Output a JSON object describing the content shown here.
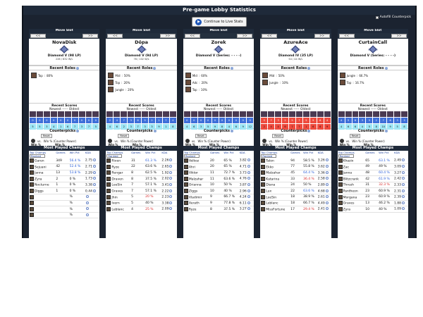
{
  "header": {
    "title": "Pre-game Lobby Statistics",
    "auto_counterpick": "Autofill Counterpick",
    "continue_label": "Continue to Live Stats"
  },
  "labels": {
    "move_slot": "Move Slot",
    "move_left": "<<",
    "move_right": ">>",
    "recent_roles": "Recent Roles",
    "recent_scores": "Recent Scores",
    "newest_oldest": "Newest ----- Oldest",
    "counterpicks": "Counterpicks",
    "reset": "Reset",
    "vs": "vs.",
    "win_pct_cp": "Win % (Counter Power)",
    "win_pct": "Win %",
    "most_played": "Most Played Champs",
    "top_champs": "Top Champs",
    "games": "Games",
    "win_pct_col": "Win Pct",
    "kda": "KDA",
    "filter": "Ranked"
  },
  "players": [
    {
      "name": "NovaDisk",
      "rank": "Diamond V (98 LP)",
      "lp": "226 / 632 W/L",
      "roles": [
        {
          "name": "Top",
          "pct": "80%"
        }
      ],
      "champs": [
        {
          "name": "Garen",
          "games": "349",
          "wr": "56.4 %",
          "kda": "2.75",
          "wc": "blue"
        },
        {
          "name": "Sejuani",
          "games": "42",
          "wr": "52.4 %",
          "kda": "2.71",
          "wc": "blue"
        },
        {
          "name": "Janna",
          "games": "13",
          "wr": "53.8 %",
          "kda": "2.29",
          "wc": "blue"
        },
        {
          "name": "Zyra",
          "games": "2",
          "wr": "0 %",
          "kda": "1.73",
          "wc": ""
        },
        {
          "name": "Nocturne",
          "games": "1",
          "wr": "0 %",
          "kda": "3.38",
          "wc": ""
        },
        {
          "name": "Diggs",
          "games": "1",
          "wr": "0 %",
          "kda": "0.44",
          "wc": ""
        },
        {
          "name": "",
          "games": "",
          "wr": "%",
          "kda": "",
          "wc": ""
        },
        {
          "name": "",
          "games": "",
          "wr": "%",
          "kda": "",
          "wc": ""
        },
        {
          "name": "",
          "games": "",
          "wr": "%",
          "kda": "",
          "wc": ""
        },
        {
          "name": "",
          "games": "",
          "wr": "%",
          "kda": "",
          "wc": ""
        }
      ]
    },
    {
      "name": "Dôpa",
      "rank": "Diamond V (94 LP)",
      "lp": "78 / 102 W/L",
      "roles": [
        {
          "name": "Mid",
          "pct": "50%"
        },
        {
          "name": "Top",
          "pct": "20%"
        },
        {
          "name": "Jungle",
          "pct": "20%"
        }
      ],
      "champs": [
        {
          "name": "Riven",
          "games": "31",
          "wr": "61.3 %",
          "kda": "2.26",
          "wc": "blue"
        },
        {
          "name": "Ryze",
          "games": "22",
          "wr": "63.6 %",
          "kda": "2.65",
          "wc": ""
        },
        {
          "name": "Rengar",
          "games": "8",
          "wr": "62.5 %",
          "kda": "1.92",
          "wc": ""
        },
        {
          "name": "Draven",
          "games": "8",
          "wr": "37.5 %",
          "kda": "2.02",
          "wc": ""
        },
        {
          "name": "LeeSin",
          "games": "7",
          "wr": "57.1 %",
          "kda": "3.41",
          "wc": ""
        },
        {
          "name": "Graves",
          "games": "7",
          "wr": "57.1 %",
          "kda": "2.22",
          "wc": ""
        },
        {
          "name": "Jhin",
          "games": "5",
          "wr": "20 %",
          "kda": "2.23",
          "wc": "red"
        },
        {
          "name": "Ivern",
          "games": "5",
          "wr": "40 %",
          "kda": "3.38",
          "wc": ""
        },
        {
          "name": "Leblanc",
          "games": "4",
          "wr": "25 %",
          "kda": "2.09",
          "wc": "red"
        }
      ]
    },
    {
      "name": "Zorek",
      "rank": "Diamond V (Series: - - - -)",
      "lp": "",
      "roles": [
        {
          "name": "Mid",
          "pct": "60%"
        },
        {
          "name": "Adc",
          "pct": "20%"
        },
        {
          "name": "Top",
          "pct": "10%"
        }
      ],
      "champs": [
        {
          "name": "Velkoz",
          "games": "20",
          "wr": "65 %",
          "kda": "3.82",
          "wc": ""
        },
        {
          "name": "Ahri",
          "games": "20",
          "wr": "65 %",
          "kda": "4.71",
          "wc": ""
        },
        {
          "name": "Viktor",
          "games": "11",
          "wr": "72.7 %",
          "kda": "3.73",
          "wc": ""
        },
        {
          "name": "Malzahar",
          "games": "11",
          "wr": "63.6 %",
          "kda": "4.76",
          "wc": ""
        },
        {
          "name": "Orianna",
          "games": "10",
          "wr": "50 %",
          "kda": "3.87",
          "wc": ""
        },
        {
          "name": "Ziggs",
          "games": "10",
          "wr": "40 %",
          "kda": "2.96",
          "wc": ""
        },
        {
          "name": "Vladimir",
          "games": "9",
          "wr": "66.7 %",
          "kda": "4.24",
          "wc": ""
        },
        {
          "name": "Xerath",
          "games": "9",
          "wr": "77.8 %",
          "kda": "6.11",
          "wc": ""
        },
        {
          "name": "Ryze",
          "games": "8",
          "wr": "37.5 %",
          "kda": "3.27",
          "wc": ""
        }
      ]
    },
    {
      "name": "AzureAce",
      "rank": "Diamond IV (35 LP)",
      "lp": "54 / 44 W/L",
      "roles": [
        {
          "name": "Mid",
          "pct": "50%"
        },
        {
          "name": "Jungle",
          "pct": "10%"
        }
      ],
      "champs": [
        {
          "name": "Talon",
          "games": "94",
          "wr": "58.5 %",
          "kda": "3.26",
          "wc": ""
        },
        {
          "name": "Ekko",
          "games": "77",
          "wr": "55.8 %",
          "kda": "3.62",
          "wc": ""
        },
        {
          "name": "Malzahar",
          "games": "45",
          "wr": "64.4 %",
          "kda": "3.36",
          "wc": "blue"
        },
        {
          "name": "Katarina",
          "games": "33",
          "wr": "36.4 %",
          "kda": "2.58",
          "wc": "red"
        },
        {
          "name": "Diana",
          "games": "24",
          "wr": "50 %",
          "kda": "2.89",
          "wc": ""
        },
        {
          "name": "Lux",
          "games": "22",
          "wr": "63.6 %",
          "kda": "4.68",
          "wc": "blue"
        },
        {
          "name": "LeeSin",
          "games": "18",
          "wr": "38.9 %",
          "kda": "2.61",
          "wc": ""
        },
        {
          "name": "Leblanc",
          "games": "18",
          "wr": "66.7 %",
          "kda": "4.49",
          "wc": ""
        },
        {
          "name": "MissFortune",
          "games": "17",
          "wr": "29.4 %",
          "kda": "2.41",
          "wc": "red"
        }
      ]
    },
    {
      "name": "CurtainCall",
      "rank": "Diamond V (Series: - - - -)",
      "lp": "",
      "roles": [
        {
          "name": "Jungle",
          "pct": "66.7%"
        },
        {
          "name": "Top",
          "pct": "16.7%"
        }
      ],
      "champs": [
        {
          "name": "Khazix",
          "games": "65",
          "wr": "63.1 %",
          "kda": "2.49",
          "wc": "blue"
        },
        {
          "name": "Zac",
          "games": "49",
          "wr": "49 %",
          "kda": "3.09",
          "wc": ""
        },
        {
          "name": "Janna",
          "games": "48",
          "wr": "60.4 %",
          "kda": "3.27",
          "wc": "blue"
        },
        {
          "name": "Blitzcrank",
          "games": "42",
          "wr": "61.9 %",
          "kda": "2.42",
          "wc": "blue"
        },
        {
          "name": "Thresh",
          "games": "31",
          "wr": "32.3 %",
          "kda": "2.33",
          "wc": "red"
        },
        {
          "name": "Pantheon",
          "games": "23",
          "wr": "60.9 %",
          "kda": "2.31",
          "wc": ""
        },
        {
          "name": "Morgana",
          "games": "23",
          "wr": "60.9 %",
          "kda": "2.39",
          "wc": ""
        },
        {
          "name": "Graves",
          "games": "13",
          "wr": "46.2 %",
          "kda": "1.88",
          "wc": ""
        },
        {
          "name": "Zyra",
          "games": "10",
          "wr": "40 %",
          "kda": "1.09",
          "wc": ""
        }
      ]
    }
  ],
  "scores": [
    {
      "top": [
        "0",
        "0",
        "0",
        "0",
        "0",
        "0",
        "0",
        "0",
        "0",
        "0"
      ],
      "bottom": [
        "5",
        "5",
        "3",
        "4",
        "1",
        "6",
        "7",
        "3",
        "7",
        "5"
      ],
      "tc": "#3e6fd9",
      "bc": "#9fe6f5"
    },
    {
      "top": [
        "2",
        "4",
        "7",
        "3",
        "6",
        "5",
        "2",
        "1",
        "7",
        "4"
      ],
      "bottom": [
        "4",
        "6",
        "2",
        "3",
        "7",
        "3",
        "3",
        "9",
        "1",
        "8"
      ],
      "tc": "#3e6fd9",
      "bc": "#9fe6f5"
    },
    {
      "top": [
        "0",
        "0",
        "0",
        "0",
        "0",
        "0",
        "0",
        "0",
        "0",
        "0"
      ],
      "bottom": [
        "4",
        "6",
        "3",
        "5",
        "9",
        "8",
        "4",
        "6",
        "9",
        "12"
      ],
      "tc": "#3e6fd9",
      "bc": "#9fe6f5"
    },
    {
      "top": [
        "5",
        "7",
        "3",
        "2",
        "5",
        "7",
        "5",
        "9",
        "6",
        "4"
      ],
      "bottom": [
        "2",
        "4",
        "4",
        "6",
        "7",
        "7",
        "1",
        "6",
        "8",
        "9"
      ],
      "tc": "#ef4a3d",
      "bc": "#ef4a3d"
    },
    {
      "top": [
        "4",
        "5",
        "6",
        "3",
        "5",
        "2",
        "7",
        "6",
        "3",
        "3"
      ],
      "bottom": [
        "4",
        "6",
        "6",
        "4",
        "5",
        "8",
        "10",
        "9",
        "5",
        "8"
      ],
      "tc": "#3e6fd9",
      "bc": "#9fe6f5"
    }
  ]
}
